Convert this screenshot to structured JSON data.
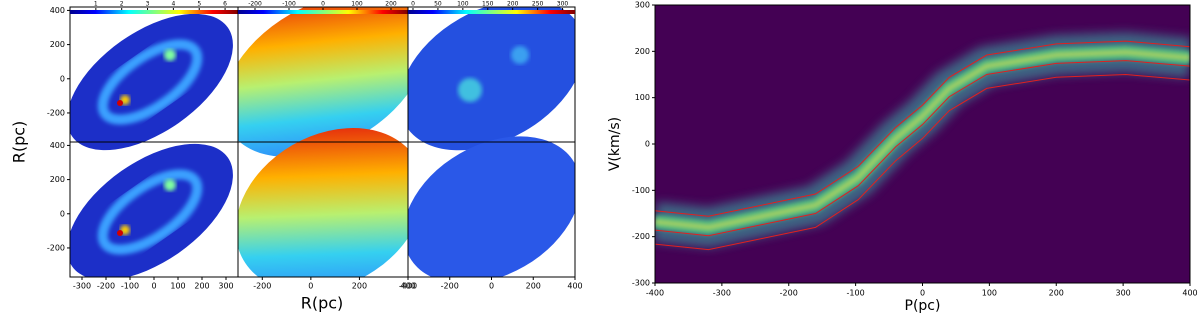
{
  "chart_data": [
    {
      "type": "heatmap",
      "xlabel": "R(pc)",
      "ylabel": "R(pc)",
      "ylim": [
        -370,
        420
      ],
      "yticks": [
        400,
        200,
        0,
        -200
      ],
      "columns": [
        {
          "colorbar_lim": [
            0,
            6.5
          ],
          "colorbar_ticks": [
            1,
            2,
            3,
            4,
            5,
            6
          ],
          "xlim": [
            -350,
            350
          ],
          "xticks": [
            -300,
            -200,
            -100,
            0,
            100,
            200,
            300
          ]
        },
        {
          "colorbar_lim": [
            -250,
            250
          ],
          "colorbar_ticks": [
            -200,
            -100,
            0,
            100,
            200
          ],
          "xlim": [
            -300,
            400
          ],
          "xticks": [
            -200,
            0,
            200,
            400
          ]
        },
        {
          "colorbar_lim": [
            -10,
            325
          ],
          "colorbar_ticks": [
            0,
            50,
            100,
            150,
            200,
            250,
            300
          ],
          "xlim": [
            -400,
            400
          ],
          "xticks": [
            -400,
            -200,
            0,
            200,
            400
          ]
        }
      ]
    },
    {
      "type": "contour",
      "xlabel": "P(pc)",
      "ylabel": "V(km/s)",
      "xlim": [
        -400,
        400
      ],
      "xticks": [
        -400,
        -300,
        -200,
        -100,
        0,
        100,
        200,
        300,
        400
      ],
      "ylim": [
        -300,
        300
      ],
      "yticks": [
        300,
        200,
        100,
        0,
        -100,
        -200,
        -300
      ],
      "background": "#440154"
    }
  ]
}
